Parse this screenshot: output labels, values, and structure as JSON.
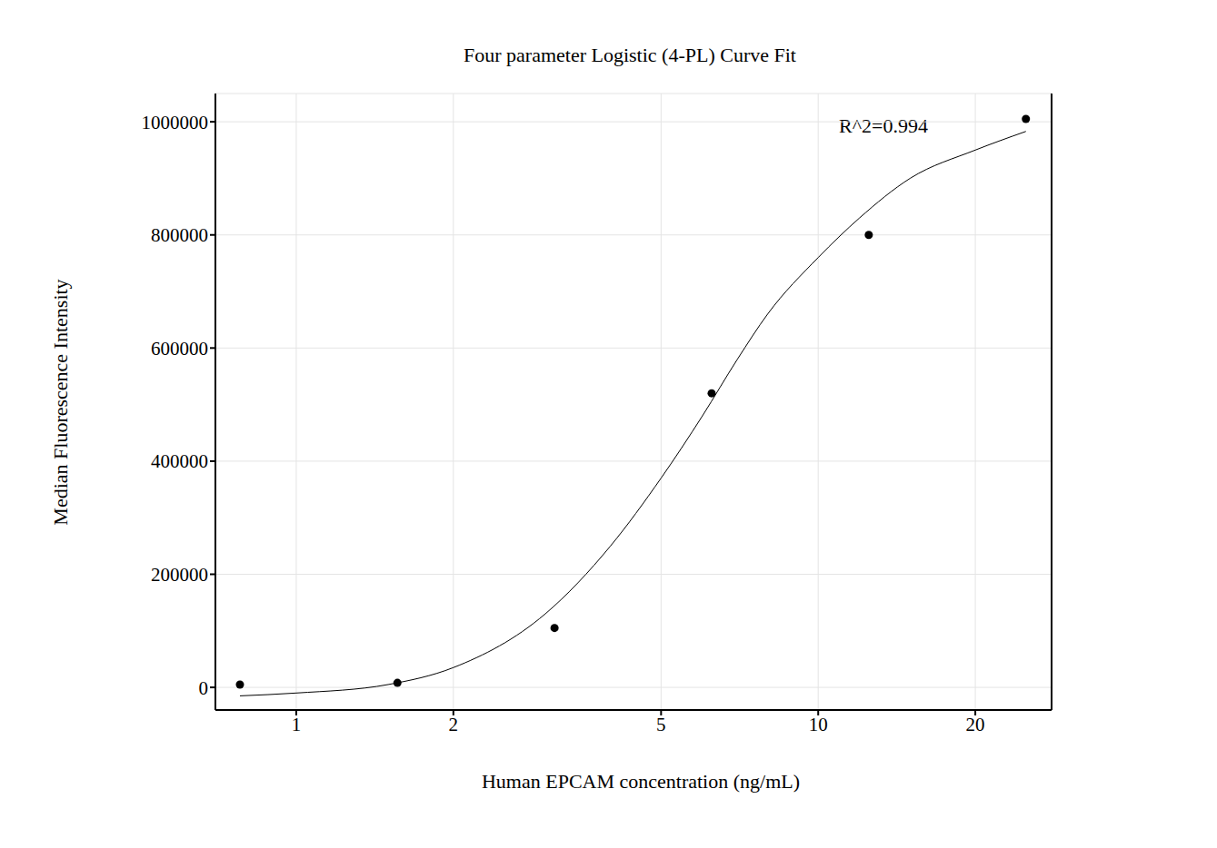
{
  "chart_data": {
    "type": "scatter",
    "title": "Four parameter Logistic (4-PL) Curve Fit",
    "x_label": "Human EPCAM concentration (ng/mL)",
    "y_label": "Median Fluorescence Intensity",
    "annotation": "R^2=0.994",
    "log": "x",
    "grid": true,
    "xlim": [
      0.7,
      28
    ],
    "xticks": [
      1,
      2,
      5,
      10,
      20
    ],
    "ylim": [
      -40000,
      1050000
    ],
    "yticks": [
      0,
      200000,
      400000,
      600000,
      800000,
      1000000
    ],
    "series": [
      {
        "type": "scatter",
        "marker": "circle",
        "color": "#000000",
        "x": [
          0.78,
          1.5625,
          3.125,
          6.25,
          12.5,
          25
        ],
        "values": [
          5000,
          8000,
          105000,
          520000,
          800000,
          1005000
        ]
      },
      {
        "type": "line",
        "line_style": "solid",
        "color": "#000000",
        "x": [
          0.78,
          1,
          1.5,
          2,
          3,
          4,
          5,
          6,
          7,
          8,
          10,
          12,
          15,
          20,
          25
        ],
        "values": [
          -15000,
          -10000,
          5000,
          35000,
          130000,
          250000,
          370000,
          480000,
          580000,
          660000,
          760000,
          830000,
          900000,
          950000,
          983000
        ]
      }
    ]
  }
}
